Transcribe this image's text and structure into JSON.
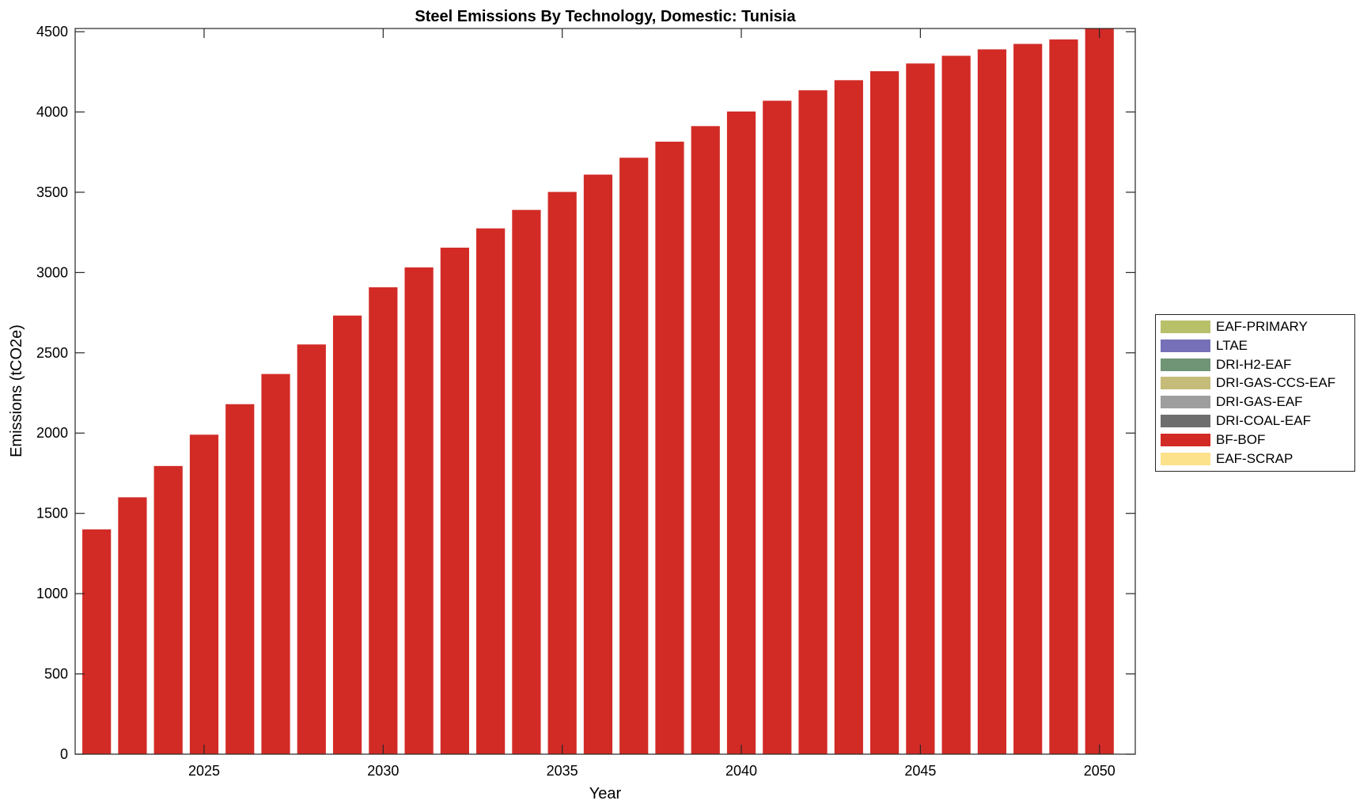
{
  "chart_data": {
    "type": "bar",
    "title": "Steel Emissions By Technology, Domestic: Tunisia",
    "xlabel": "Year",
    "ylabel": "Emissions (tCO2e)",
    "x": [
      2022,
      2023,
      2024,
      2025,
      2026,
      2027,
      2028,
      2029,
      2030,
      2031,
      2032,
      2033,
      2034,
      2035,
      2036,
      2037,
      2038,
      2039,
      2040,
      2041,
      2042,
      2043,
      2044,
      2045,
      2046,
      2047,
      2048,
      2049,
      2050
    ],
    "xlim": [
      2021.4,
      2051
    ],
    "ylim": [
      0,
      4520
    ],
    "xticks": [
      2025,
      2030,
      2035,
      2040,
      2045,
      2050
    ],
    "yticks": [
      0,
      500,
      1000,
      1500,
      2000,
      2500,
      3000,
      3500,
      4000,
      4500
    ],
    "grid": false,
    "legend_position": "right",
    "series": [
      {
        "name": "EAF-PRIMARY",
        "color": "#b8c06a",
        "values": [
          0,
          0,
          0,
          0,
          0,
          0,
          0,
          0,
          0,
          0,
          0,
          0,
          0,
          0,
          0,
          0,
          0,
          0,
          0,
          0,
          0,
          0,
          0,
          0,
          0,
          0,
          0,
          0,
          0
        ]
      },
      {
        "name": "LTAE",
        "color": "#7570b8",
        "values": [
          0,
          0,
          0,
          0,
          0,
          0,
          0,
          0,
          0,
          0,
          0,
          0,
          0,
          0,
          0,
          0,
          0,
          0,
          0,
          0,
          0,
          0,
          0,
          0,
          0,
          0,
          0,
          0,
          0
        ]
      },
      {
        "name": "DRI-H2-EAF",
        "color": "#6f9576",
        "values": [
          0,
          0,
          0,
          0,
          0,
          0,
          0,
          0,
          0,
          0,
          0,
          0,
          0,
          0,
          0,
          0,
          0,
          0,
          0,
          0,
          0,
          0,
          0,
          0,
          0,
          0,
          0,
          0,
          0
        ]
      },
      {
        "name": "DRI-GAS-CCS-EAF",
        "color": "#c6bc7a",
        "values": [
          0,
          0,
          0,
          0,
          0,
          0,
          0,
          0,
          0,
          0,
          0,
          0,
          0,
          0,
          0,
          0,
          0,
          0,
          0,
          0,
          0,
          0,
          0,
          0,
          0,
          0,
          0,
          0,
          0
        ]
      },
      {
        "name": "DRI-GAS-EAF",
        "color": "#9e9e9e",
        "values": [
          0,
          0,
          0,
          0,
          0,
          0,
          0,
          0,
          0,
          0,
          0,
          0,
          0,
          0,
          0,
          0,
          0,
          0,
          0,
          0,
          0,
          0,
          0,
          0,
          0,
          0,
          0,
          0,
          0
        ]
      },
      {
        "name": "DRI-COAL-EAF",
        "color": "#6e6e6e",
        "values": [
          0,
          0,
          0,
          0,
          0,
          0,
          0,
          0,
          0,
          0,
          0,
          0,
          0,
          0,
          0,
          0,
          0,
          0,
          0,
          0,
          0,
          0,
          0,
          0,
          0,
          0,
          0,
          0,
          0
        ]
      },
      {
        "name": "BF-BOF",
        "color": "#d22b26",
        "values": [
          1400,
          1600,
          1795,
          1990,
          2180,
          2368,
          2552,
          2732,
          2908,
          3032,
          3155,
          3275,
          3390,
          3502,
          3610,
          3715,
          3815,
          3912,
          4003,
          4070,
          4135,
          4198,
          4254,
          4302,
          4350,
          4390,
          4424,
          4452,
          4530
        ]
      },
      {
        "name": "EAF-SCRAP",
        "color": "#fde28c",
        "values": [
          0,
          0,
          0,
          0,
          0,
          0,
          0,
          0,
          0,
          0,
          0,
          0,
          0,
          0,
          0,
          0,
          0,
          0,
          0,
          0,
          0,
          0,
          0,
          0,
          0,
          0,
          0,
          0,
          0
        ]
      }
    ]
  }
}
